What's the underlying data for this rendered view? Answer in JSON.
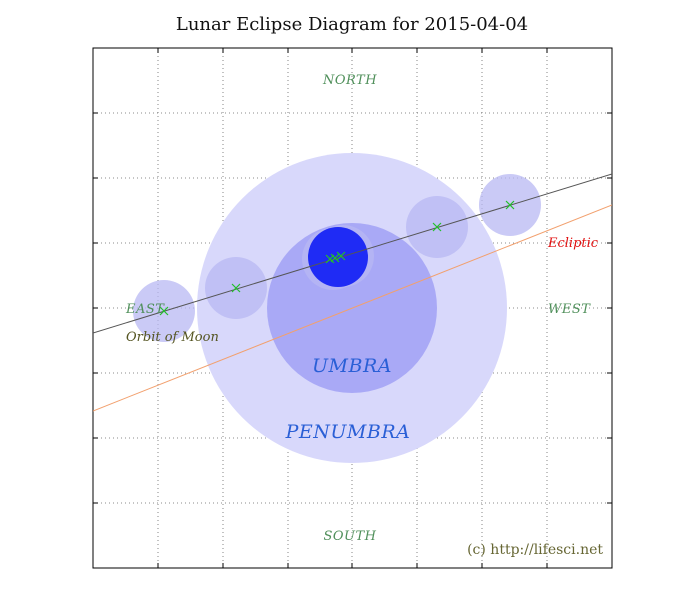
{
  "title": "Lunar Eclipse Diagram for 2015-04-04",
  "labels": {
    "north": "NORTH",
    "south": "SOUTH",
    "east": "EAST",
    "west": "WEST",
    "umbra": "UMBRA",
    "penumbra": "PENUMBRA",
    "ecliptic": "Ecliptic",
    "orbit": "Orbit of Moon",
    "copyright": "(c) http://lifesci.net"
  },
  "colors": {
    "penumbra": "#d8d8fb",
    "umbra": "#a9a9f6",
    "moon": "#b8b8f3",
    "moon_max": "#1f2bf5",
    "ecliptic_line": "#f2a06e",
    "orbit_line": "#555555",
    "center_mark": "#22c02a",
    "ecliptic_text": "#e01010",
    "direction_text": "#4f8f5a",
    "zone_text": "#2a5fd6"
  }
}
